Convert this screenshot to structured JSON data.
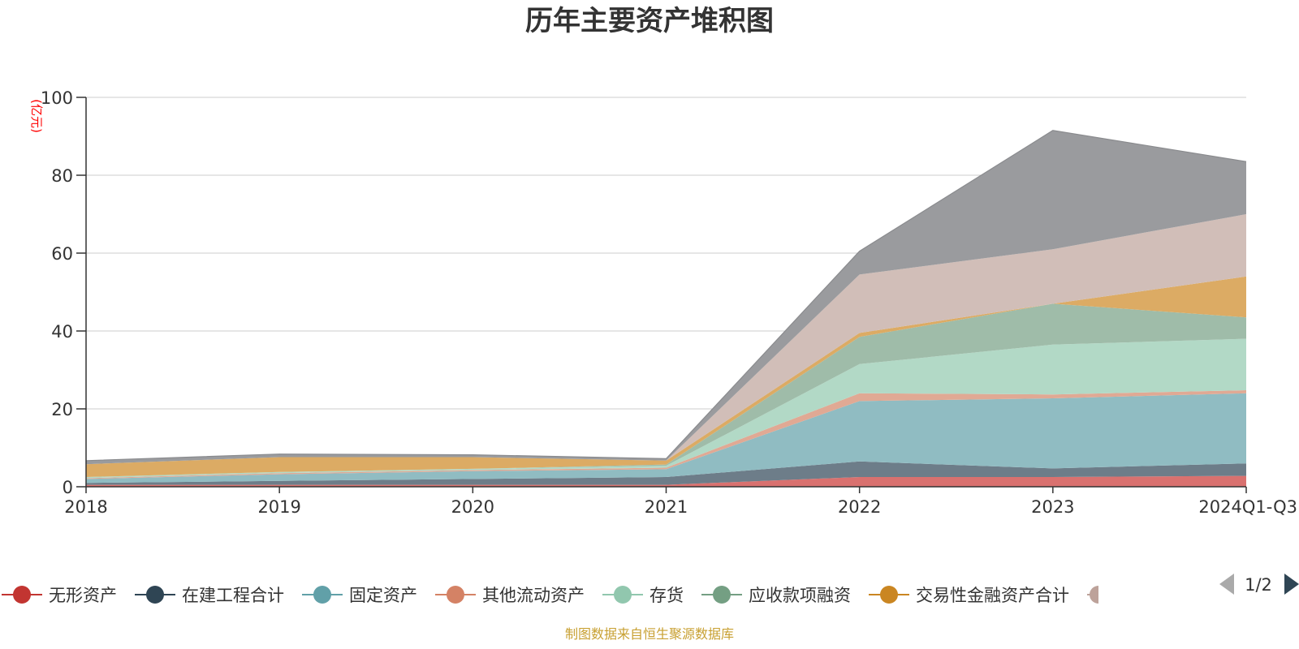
{
  "chart_data": {
    "type": "area",
    "stacked": true,
    "title": "历年主要资产堆积图",
    "unit": "(亿元)",
    "source": "制图数据来自恒生聚源数据库",
    "x": [
      "2018",
      "2019",
      "2020",
      "2021",
      "2022",
      "2023",
      "2024Q1-Q3"
    ],
    "ylim": [
      0,
      100
    ],
    "yticks": [
      0,
      20,
      40,
      60,
      80,
      100
    ],
    "grid": true,
    "legend_position": "bottom",
    "legend_page": "1/2",
    "series": [
      {
        "name": "无形资产",
        "color": "#c23531",
        "fill": "#d9716f",
        "values": [
          0.5,
          0.5,
          0.5,
          0.5,
          2.5,
          2.5,
          2.8
        ]
      },
      {
        "name": "在建工程合计",
        "color": "#2f4554",
        "fill": "#6d7d89",
        "values": [
          0.5,
          1.0,
          1.5,
          2.0,
          4.0,
          2.2,
          3.2
        ]
      },
      {
        "name": "固定资产",
        "color": "#61a0a8",
        "fill": "#90bcc2",
        "values": [
          1.0,
          1.7,
          2.0,
          2.0,
          15.5,
          18.0,
          18.0
        ]
      },
      {
        "name": "其他流动资产",
        "color": "#d48265",
        "fill": "#e0a994",
        "values": [
          0.2,
          0.3,
          0.3,
          0.4,
          2.0,
          1.0,
          0.8
        ]
      },
      {
        "name": "存货",
        "color": "#91c7ae",
        "fill": "#b2d9c6",
        "values": [
          0.3,
          0.3,
          0.3,
          0.5,
          7.5,
          12.8,
          13.2
        ]
      },
      {
        "name": "应收款项融资",
        "color": "#749f83",
        "fill": "#9fbca9",
        "values": [
          0.0,
          0.0,
          0.0,
          0.3,
          7.0,
          10.5,
          5.5
        ]
      },
      {
        "name": "交易性金融资产合计",
        "color": "#ca8622",
        "fill": "#dcab64",
        "values": [
          3.3,
          3.8,
          3.0,
          1.0,
          1.0,
          0.0,
          10.5
        ]
      },
      {
        "name": "",
        "color": "#bda29a",
        "fill": "#d1beb8",
        "values": [
          0.0,
          0.0,
          0.0,
          0.0,
          15.0,
          14.0,
          16.0
        ]
      },
      {
        "name": "",
        "color": "#6e7074",
        "fill": "#9a9b9e",
        "values": [
          0.9,
          0.8,
          0.6,
          0.5,
          6.0,
          30.5,
          13.5
        ]
      }
    ]
  }
}
